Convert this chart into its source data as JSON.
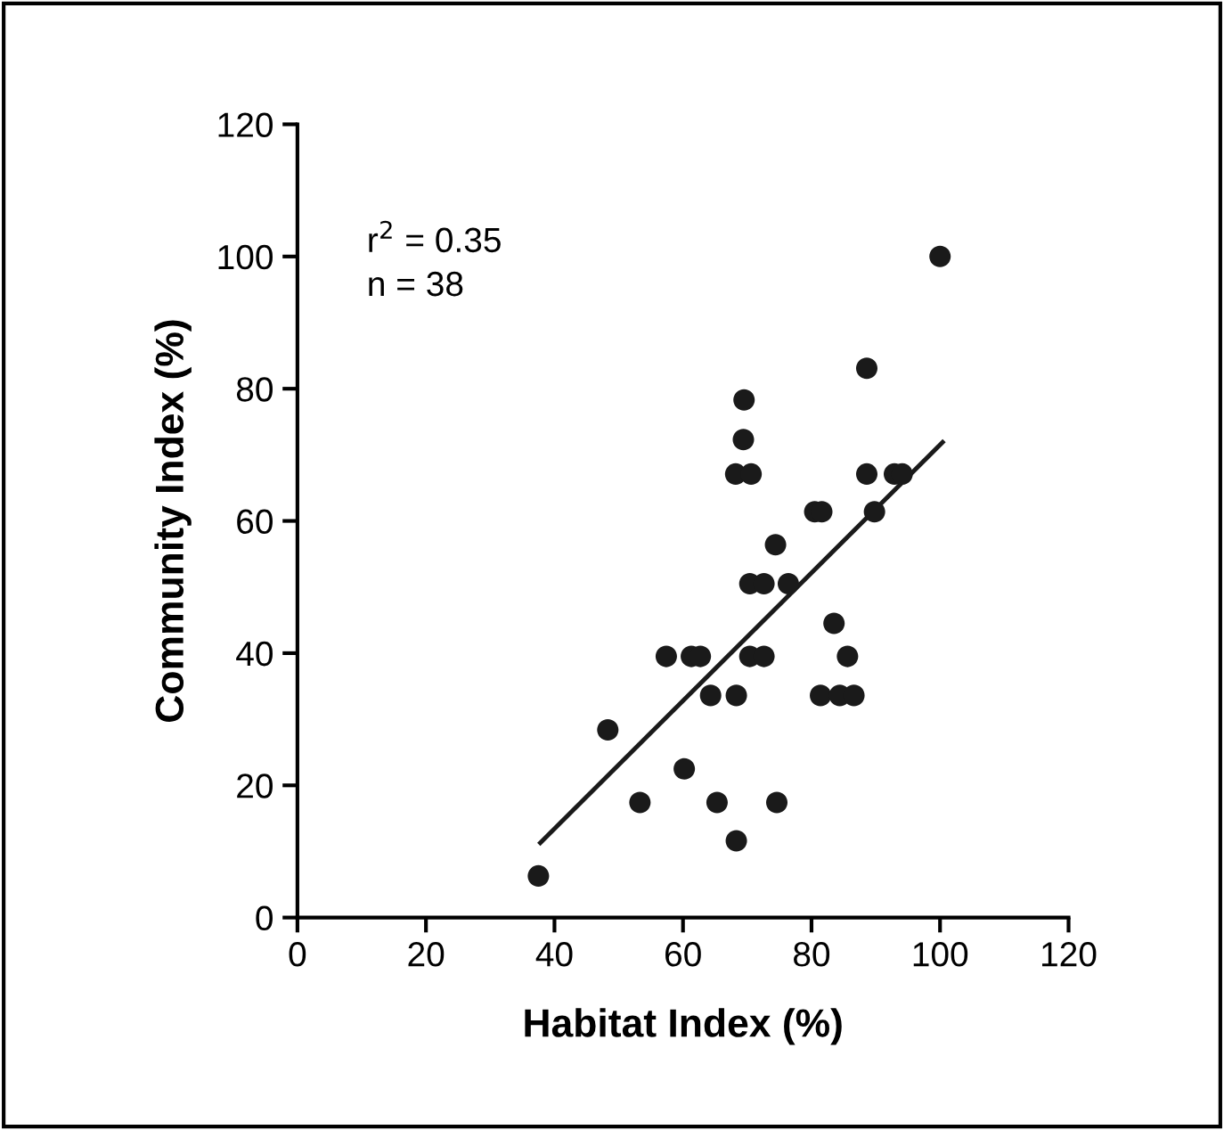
{
  "chart_data": {
    "type": "scatter",
    "xlabel": "Habitat Index (%)",
    "ylabel": "Community Index (%)",
    "xlim": [
      0,
      120
    ],
    "ylim": [
      0,
      120
    ],
    "xticks": [
      0,
      20,
      40,
      60,
      80,
      100,
      120
    ],
    "yticks": [
      0,
      20,
      40,
      60,
      80,
      100,
      120
    ],
    "grid": false,
    "legend": false,
    "marker": "circle",
    "annotations": [
      "r$^{2}$ = 0.35",
      "n = 38"
    ],
    "series": [
      {
        "color": "#1a1a1a",
        "x": [
          37.5,
          48.3,
          53.3,
          57.4,
          60.2,
          61.3,
          62.7,
          64.3,
          65.3,
          68.3,
          68.3,
          68.2,
          69.5,
          69.4,
          70.6,
          70.4,
          70.4,
          72.6,
          72.6,
          74.4,
          74.6,
          76.4,
          80.5,
          81.6,
          81.4,
          83.5,
          84.4,
          85.6,
          86.6,
          88.6,
          88.6,
          89.8,
          92.9,
          94.1,
          100
        ],
        "values": [
          6.3,
          28.4,
          17.4,
          39.5,
          22.5,
          39.5,
          39.5,
          33.6,
          17.4,
          33.6,
          11.6,
          67.1,
          78.3,
          72.3,
          67.1,
          50.5,
          39.5,
          50.5,
          39.5,
          56.4,
          17.4,
          50.5,
          61.4,
          61.4,
          33.6,
          44.5,
          33.6,
          39.5,
          33.6,
          83.1,
          67.1,
          61.4,
          67.1,
          67.1,
          100
        ]
      },
      {
        "type": "line",
        "color": "#1a1a1a",
        "marker": "none",
        "line_style": "solid",
        "x": [
          37.8,
          100.4
        ],
        "values": [
          11.3,
          71.9
        ]
      }
    ]
  }
}
